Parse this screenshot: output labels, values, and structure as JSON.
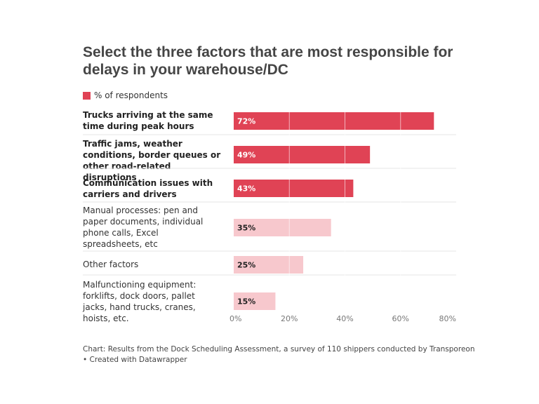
{
  "chart_data": {
    "type": "bar",
    "orientation": "horizontal",
    "title": "Select the three factors that are most responsible for delays in your warehouse/DC",
    "legend": [
      "% of respondents"
    ],
    "categories": [
      "Trucks arriving at the same time during peak hours",
      "Traffic jams, weather conditions, border queues or other road-related disruptions",
      "Communication issues with carriers and drivers",
      "Manual processes: pen and paper documents, individual phone calls, Excel spreadsheets, etc",
      "Other factors",
      "Malfunctioning equipment: forklifts, dock doors, pallet jacks, hand trucks, cranes, hoists, etc."
    ],
    "values": [
      72,
      49,
      43,
      35,
      25,
      15
    ],
    "value_labels": [
      "72%",
      "49%",
      "43%",
      "35%",
      "25%",
      "15%"
    ],
    "highlighted": [
      true,
      true,
      true,
      false,
      false,
      false
    ],
    "xlim": [
      0,
      80
    ],
    "x_ticks": [
      "0%",
      "20%",
      "40%",
      "60%",
      "80%"
    ],
    "grid": true,
    "colors": {
      "highlight": "#e04355",
      "muted": "#f7c8cd",
      "grid": "#ffffff"
    },
    "source": "Chart: Results from the Dock Scheduling Assessment, a survey of 110 shippers conducted by Transporeon • Created with Datawrapper"
  }
}
